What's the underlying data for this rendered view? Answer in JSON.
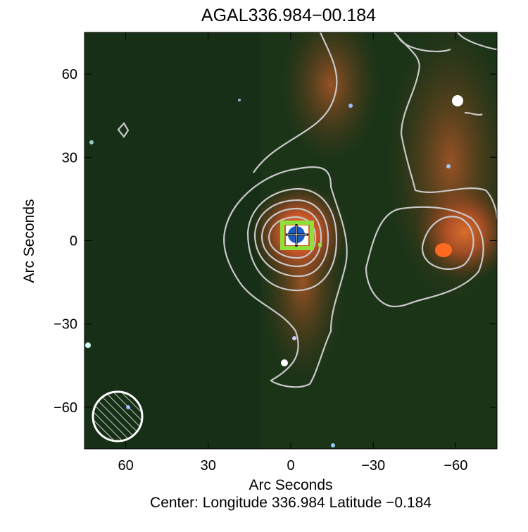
{
  "chart_data": {
    "type": "image",
    "title": "AGAL336.984−00.184",
    "xlabel": "Arc Seconds",
    "ylabel": "Arc Seconds",
    "footer": "Center:  Longitude 336.984 Latitude −0.184",
    "xlim": [
      75,
      -75
    ],
    "ylim": [
      -75,
      75
    ],
    "xticks": [
      60,
      30,
      0,
      {
        "value": -30,
        "label": "−30"
      },
      {
        "value": -60,
        "label": "−60"
      }
    ],
    "yticks": [
      {
        "value": -60,
        "label": "−60"
      },
      {
        "value": -30,
        "label": "−30"
      },
      0,
      30,
      60
    ]
  }
}
